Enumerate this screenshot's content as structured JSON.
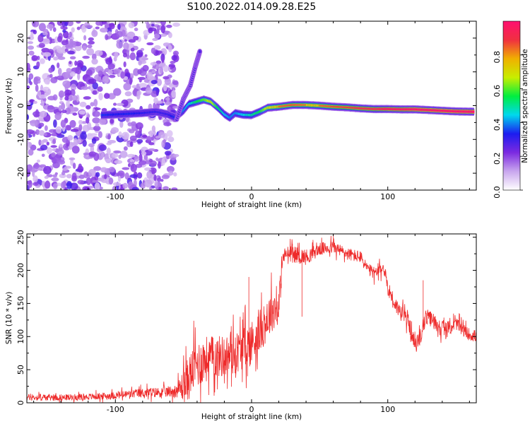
{
  "figure_title": "S100.2022.014.09.28.E25",
  "chart_data": [
    {
      "type": "heatmap",
      "title": "",
      "xlabel": "Height of straight line (km)",
      "ylabel": "Frequency (Hz)",
      "xlim": [
        -165,
        165
      ],
      "ylim": [
        -25,
        25
      ],
      "xticks": [
        -100,
        0,
        100
      ],
      "yticks": [
        -20,
        -10,
        0,
        10,
        20
      ],
      "grid": false,
      "colorbar": {
        "label": "Normalized spectral amplitude",
        "range": [
          0,
          1
        ],
        "ticks": [
          "0.0",
          "0.2",
          "0.4",
          "0.6",
          "0.8"
        ],
        "colors": [
          "#ffffff",
          "#c9a6ee",
          "#7c2ae0",
          "#1c1cf0",
          "#00d8ee",
          "#00ee40",
          "#c8ee00",
          "#f0b000",
          "#f03040",
          "#ff1070"
        ]
      },
      "ridge": {
        "description_points": [
          [
            -110,
            -2.8
          ],
          [
            -100,
            -2.6
          ],
          [
            -90,
            -2.4
          ],
          [
            -80,
            -2.2
          ],
          [
            -70,
            -1.8
          ],
          [
            -62,
            -2.5
          ],
          [
            -56,
            -3.5
          ],
          [
            -50,
            -1.5
          ],
          [
            -46,
            0.5
          ],
          [
            -40,
            1.2
          ],
          [
            -35,
            1.8
          ],
          [
            -30,
            1.2
          ],
          [
            -25,
            -0.5
          ],
          [
            -20,
            -2.5
          ],
          [
            -16,
            -3.6
          ],
          [
            -12,
            -2.2
          ],
          [
            -6,
            -2.7
          ],
          [
            0,
            -2.8
          ],
          [
            6,
            -1.8
          ],
          [
            12,
            -0.6
          ],
          [
            20,
            -0.3
          ],
          [
            30,
            0.2
          ],
          [
            40,
            0.2
          ],
          [
            50,
            0.0
          ],
          [
            60,
            -0.3
          ],
          [
            70,
            -0.5
          ],
          [
            80,
            -0.8
          ],
          [
            90,
            -1.0
          ],
          [
            100,
            -1.0
          ],
          [
            110,
            -1.1
          ],
          [
            120,
            -1.1
          ],
          [
            130,
            -1.3
          ],
          [
            140,
            -1.5
          ],
          [
            150,
            -1.7
          ],
          [
            163,
            -1.8
          ]
        ],
        "amplitude": [
          0.35,
          0.33,
          0.34,
          0.32,
          0.3,
          0.3,
          0.35,
          0.4,
          0.45,
          0.55,
          0.6,
          0.7,
          0.55,
          0.45,
          0.4,
          0.4,
          0.45,
          0.5,
          0.55,
          0.7,
          0.75,
          0.78,
          0.75,
          0.75,
          0.78,
          0.8,
          0.85,
          0.85,
          0.9,
          0.9,
          0.95,
          0.95,
          0.97,
          1.0,
          1.0
        ]
      },
      "side_branch": {
        "description_points": [
          [
            -55,
            -4
          ],
          [
            -50,
            2
          ],
          [
            -45,
            6
          ],
          [
            -41,
            12
          ],
          [
            -38,
            16
          ]
        ],
        "amplitude": 0.28
      },
      "noise_region": {
        "xrange": [
          -165,
          -60
        ],
        "typical_amplitude": 0.15
      }
    },
    {
      "type": "line",
      "title": "",
      "xlabel": "Height of straight line (km)",
      "ylabel": "SNR (10 * v/v)",
      "xlim": [
        -165,
        165
      ],
      "ylim": [
        0,
        255
      ],
      "xticks": [
        -100,
        0,
        100
      ],
      "yticks": [
        0,
        50,
        100,
        150,
        200,
        250
      ],
      "grid": false,
      "color": "#ee2a2a",
      "envelope_x": [
        -165,
        -140,
        -120,
        -100,
        -80,
        -65,
        -55,
        -48,
        -42,
        -35,
        -28,
        -20,
        -12,
        -5,
        0,
        5,
        10,
        15,
        20,
        23,
        26,
        30,
        40,
        50,
        60,
        70,
        80,
        86,
        92,
        97,
        100,
        105,
        110,
        115,
        120,
        124,
        128,
        133,
        138,
        143,
        150,
        158,
        165
      ],
      "envelope_y": [
        8,
        8,
        9,
        11,
        15,
        16,
        18,
        30,
        55,
        65,
        70,
        70,
        75,
        85,
        90,
        105,
        120,
        140,
        145,
        220,
        225,
        225,
        220,
        232,
        235,
        225,
        220,
        200,
        195,
        205,
        175,
        150,
        135,
        125,
        85,
        100,
        130,
        125,
        115,
        110,
        120,
        105,
        100
      ],
      "envelope_noise": [
        6,
        6,
        6,
        7,
        9,
        10,
        12,
        40,
        45,
        45,
        40,
        40,
        40,
        40,
        45,
        40,
        40,
        40,
        35,
        15,
        15,
        15,
        15,
        12,
        12,
        12,
        12,
        12,
        12,
        12,
        15,
        15,
        15,
        15,
        15,
        15,
        15,
        15,
        15,
        15,
        12,
        12,
        12
      ]
    }
  ]
}
